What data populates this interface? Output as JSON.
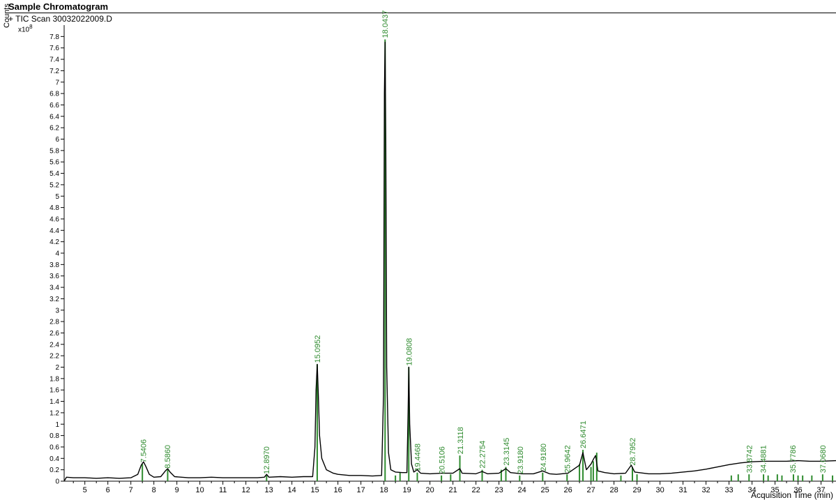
{
  "header": {
    "title": "Sample Chromatogram"
  },
  "chart_data": {
    "type": "line",
    "title": "Sample Chromatogram",
    "subtitle": "TIC Scan 30032022009.D",
    "subtitle_prefix": "+",
    "ylabel": "Counts",
    "y_scale_label": "x10",
    "y_scale_exponent": "8",
    "xlabel": "Acquisition Time (min)",
    "xlim": [
      4.1,
      37.65
    ],
    "ylim": [
      0,
      8.0
    ],
    "x_ticks": [
      5,
      6,
      7,
      8,
      9,
      10,
      11,
      12,
      13,
      14,
      15,
      16,
      17,
      18,
      19,
      20,
      21,
      22,
      23,
      24,
      25,
      26,
      27,
      28,
      29,
      30,
      31,
      32,
      33,
      34,
      35,
      36,
      37
    ],
    "y_ticks": [
      0,
      0.2,
      0.4,
      0.6,
      0.8,
      1,
      1.2,
      1.4,
      1.6,
      1.8,
      2,
      2.2,
      2.4,
      2.6,
      2.8,
      3,
      3.2,
      3.4,
      3.6,
      3.8,
      4,
      4.2,
      4.4,
      4.6,
      4.8,
      5,
      5.2,
      5.4,
      5.6,
      5.8,
      6,
      6.2,
      6.4,
      6.6,
      6.8,
      7,
      7.2,
      7.4,
      7.6,
      7.8
    ],
    "grid": false,
    "trace_color": "#000000",
    "marker_color": "#2e8b2e",
    "series": [
      {
        "values": [
          [
            4.1,
            0.0
          ],
          [
            4.2,
            0.07
          ],
          [
            4.5,
            0.06
          ],
          [
            5.0,
            0.06
          ],
          [
            5.5,
            0.05
          ],
          [
            6.0,
            0.06
          ],
          [
            6.5,
            0.05
          ],
          [
            7.0,
            0.06
          ],
          [
            7.3,
            0.12
          ],
          [
            7.45,
            0.28
          ],
          [
            7.55,
            0.34
          ],
          [
            7.65,
            0.26
          ],
          [
            7.8,
            0.12
          ],
          [
            8.0,
            0.07
          ],
          [
            8.3,
            0.08
          ],
          [
            8.5,
            0.18
          ],
          [
            8.6,
            0.22
          ],
          [
            8.7,
            0.16
          ],
          [
            8.9,
            0.08
          ],
          [
            9.2,
            0.07
          ],
          [
            9.5,
            0.06
          ],
          [
            10.0,
            0.06
          ],
          [
            10.5,
            0.07
          ],
          [
            11.0,
            0.06
          ],
          [
            11.5,
            0.06
          ],
          [
            12.0,
            0.06
          ],
          [
            12.5,
            0.06
          ],
          [
            12.8,
            0.07
          ],
          [
            12.9,
            0.12
          ],
          [
            13.0,
            0.07
          ],
          [
            13.5,
            0.08
          ],
          [
            14.0,
            0.07
          ],
          [
            14.5,
            0.08
          ],
          [
            14.9,
            0.08
          ],
          [
            15.0,
            0.6
          ],
          [
            15.05,
            1.6
          ],
          [
            15.1,
            2.05
          ],
          [
            15.15,
            1.5
          ],
          [
            15.2,
            0.8
          ],
          [
            15.3,
            0.4
          ],
          [
            15.5,
            0.2
          ],
          [
            15.8,
            0.14
          ],
          [
            16.0,
            0.12
          ],
          [
            16.5,
            0.1
          ],
          [
            17.0,
            0.1
          ],
          [
            17.5,
            0.09
          ],
          [
            17.9,
            0.1
          ],
          [
            17.98,
            1.5
          ],
          [
            18.02,
            6.8
          ],
          [
            18.05,
            7.7
          ],
          [
            18.08,
            6.0
          ],
          [
            18.12,
            2.0
          ],
          [
            18.2,
            0.5
          ],
          [
            18.3,
            0.2
          ],
          [
            18.5,
            0.16
          ],
          [
            18.8,
            0.15
          ],
          [
            19.0,
            0.15
          ],
          [
            19.05,
            1.2
          ],
          [
            19.08,
            2.0
          ],
          [
            19.12,
            1.0
          ],
          [
            19.2,
            0.3
          ],
          [
            19.3,
            0.16
          ],
          [
            19.45,
            0.2
          ],
          [
            19.6,
            0.14
          ],
          [
            20.0,
            0.13
          ],
          [
            20.5,
            0.14
          ],
          [
            21.0,
            0.14
          ],
          [
            21.3,
            0.22
          ],
          [
            21.4,
            0.14
          ],
          [
            22.0,
            0.13
          ],
          [
            22.27,
            0.17
          ],
          [
            22.5,
            0.13
          ],
          [
            23.0,
            0.14
          ],
          [
            23.3,
            0.22
          ],
          [
            23.5,
            0.15
          ],
          [
            24.0,
            0.13
          ],
          [
            24.5,
            0.13
          ],
          [
            24.9,
            0.18
          ],
          [
            25.2,
            0.13
          ],
          [
            25.5,
            0.12
          ],
          [
            26.0,
            0.14
          ],
          [
            26.5,
            0.28
          ],
          [
            26.65,
            0.5
          ],
          [
            26.8,
            0.2
          ],
          [
            27.0,
            0.3
          ],
          [
            27.1,
            0.38
          ],
          [
            27.2,
            0.45
          ],
          [
            27.3,
            0.18
          ],
          [
            27.6,
            0.15
          ],
          [
            28.0,
            0.13
          ],
          [
            28.5,
            0.14
          ],
          [
            28.75,
            0.28
          ],
          [
            28.9,
            0.16
          ],
          [
            29.5,
            0.13
          ],
          [
            30.0,
            0.13
          ],
          [
            30.5,
            0.14
          ],
          [
            31.0,
            0.16
          ],
          [
            31.5,
            0.18
          ],
          [
            32.0,
            0.21
          ],
          [
            32.5,
            0.25
          ],
          [
            33.0,
            0.29
          ],
          [
            33.5,
            0.32
          ],
          [
            34.0,
            0.34
          ],
          [
            34.5,
            0.35
          ],
          [
            35.0,
            0.35
          ],
          [
            35.5,
            0.35
          ],
          [
            36.0,
            0.36
          ],
          [
            36.5,
            0.35
          ],
          [
            37.0,
            0.35
          ],
          [
            37.65,
            0.36
          ]
        ]
      }
    ],
    "peak_labels": [
      {
        "x": 7.5406,
        "text": "7.5406"
      },
      {
        "x": 8.586,
        "text": "8.5860"
      },
      {
        "x": 12.897,
        "text": "12.8970"
      },
      {
        "x": 15.0952,
        "text": "15.0952"
      },
      {
        "x": 18.0437,
        "text": "18.0437"
      },
      {
        "x": 19.0808,
        "text": "19.0808"
      },
      {
        "x": 19.4468,
        "text": "19.4468"
      },
      {
        "x": 20.5106,
        "text": "20.5106"
      },
      {
        "x": 21.3118,
        "text": "21.3118"
      },
      {
        "x": 22.2754,
        "text": "22.2754"
      },
      {
        "x": 23.3145,
        "text": "23.3145"
      },
      {
        "x": 23.918,
        "text": "23.9180"
      },
      {
        "x": 24.918,
        "text": "24.9180"
      },
      {
        "x": 25.9642,
        "text": "25.9642"
      },
      {
        "x": 26.6471,
        "text": "26.6471"
      },
      {
        "x": 28.7952,
        "text": "28.7952"
      },
      {
        "x": 33.8742,
        "text": "33.8742"
      },
      {
        "x": 34.4881,
        "text": "34.4881"
      },
      {
        "x": 35.7786,
        "text": "35.7786"
      },
      {
        "x": 37.068,
        "text": "37.0680"
      }
    ],
    "peak_markers": [
      {
        "x": 7.5,
        "y": 0.3
      },
      {
        "x": 8.6,
        "y": 0.2
      },
      {
        "x": 12.9,
        "y": 0.1
      },
      {
        "x": 15.1,
        "y": 2.05
      },
      {
        "x": 18.05,
        "y": 7.75
      },
      {
        "x": 18.5,
        "y": 0.1
      },
      {
        "x": 18.7,
        "y": 0.15
      },
      {
        "x": 19.08,
        "y": 2.0
      },
      {
        "x": 19.45,
        "y": 0.15
      },
      {
        "x": 20.5,
        "y": 0.1
      },
      {
        "x": 20.9,
        "y": 0.12
      },
      {
        "x": 21.3,
        "y": 0.45
      },
      {
        "x": 22.27,
        "y": 0.2
      },
      {
        "x": 23.1,
        "y": 0.2
      },
      {
        "x": 23.3,
        "y": 0.25
      },
      {
        "x": 23.9,
        "y": 0.1
      },
      {
        "x": 24.9,
        "y": 0.15
      },
      {
        "x": 25.96,
        "y": 0.12
      },
      {
        "x": 26.5,
        "y": 0.3
      },
      {
        "x": 26.65,
        "y": 0.55
      },
      {
        "x": 27.0,
        "y": 0.25
      },
      {
        "x": 27.1,
        "y": 0.35
      },
      {
        "x": 27.25,
        "y": 0.5
      },
      {
        "x": 28.3,
        "y": 0.1
      },
      {
        "x": 28.8,
        "y": 0.25
      },
      {
        "x": 29.0,
        "y": 0.12
      },
      {
        "x": 33.1,
        "y": 0.1
      },
      {
        "x": 33.4,
        "y": 0.12
      },
      {
        "x": 33.87,
        "y": 0.12
      },
      {
        "x": 34.5,
        "y": 0.12
      },
      {
        "x": 34.7,
        "y": 0.1
      },
      {
        "x": 35.1,
        "y": 0.12
      },
      {
        "x": 35.3,
        "y": 0.1
      },
      {
        "x": 35.8,
        "y": 0.12
      },
      {
        "x": 36.0,
        "y": 0.1
      },
      {
        "x": 36.2,
        "y": 0.1
      },
      {
        "x": 36.6,
        "y": 0.1
      },
      {
        "x": 37.07,
        "y": 0.12
      },
      {
        "x": 37.5,
        "y": 0.1
      }
    ]
  }
}
